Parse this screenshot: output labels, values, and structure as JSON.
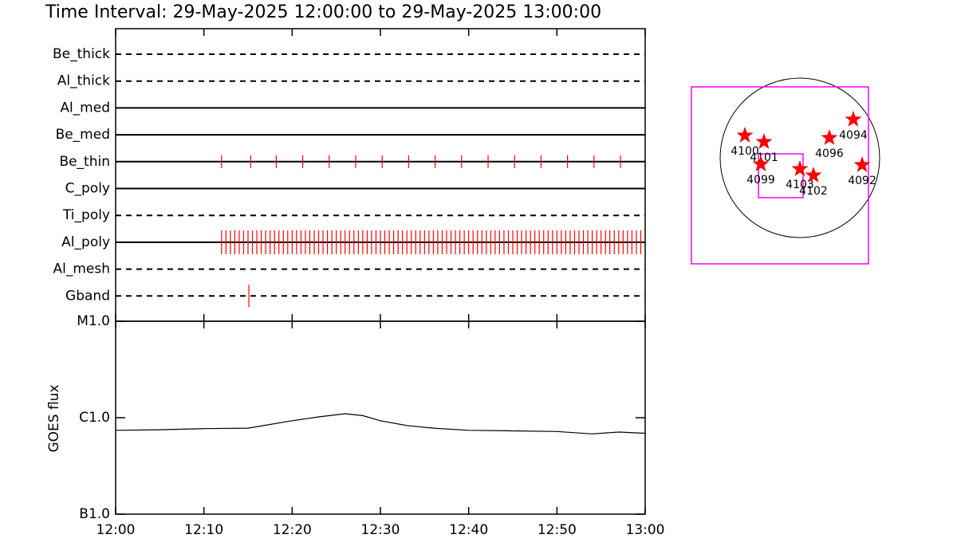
{
  "chart_data": [
    {
      "type": "timeline",
      "title": "Time Interval: 29-May-2025 12:00:00 to 29-May-2025 13:00:00",
      "color": "#ff0000",
      "filters": [
        {
          "name": "Be_thick",
          "style": "dashed",
          "events": []
        },
        {
          "name": "Al_thick",
          "style": "dashed",
          "events": []
        },
        {
          "name": "Al_med",
          "style": "solid",
          "events": []
        },
        {
          "name": "Be_med",
          "style": "solid",
          "events": []
        },
        {
          "name": "Be_thin",
          "style": "solid",
          "events": [
            12,
            15.3,
            18.2,
            21.2,
            24.2,
            27.2,
            30.2,
            33.2,
            36.2,
            39.2,
            42.2,
            45.2,
            48.2,
            51.2,
            54.2,
            57.2
          ]
        },
        {
          "name": "C_poly",
          "style": "solid",
          "events": []
        },
        {
          "name": "Ti_poly",
          "style": "dashed",
          "events": []
        },
        {
          "name": "Al_poly",
          "style": "solid",
          "events": [
            12,
            12.5,
            13,
            13.5,
            14,
            14.5,
            15,
            15.5,
            16,
            16.5,
            17,
            17.5,
            18,
            18.5,
            19,
            19.5,
            20,
            20.5,
            21,
            21.5,
            22,
            22.5,
            23,
            23.5,
            24,
            24.5,
            25,
            25.5,
            26,
            26.5,
            27,
            27.5,
            28,
            28.5,
            29,
            29.5,
            30,
            30.5,
            31,
            31.5,
            32,
            32.5,
            33,
            33.5,
            34,
            34.5,
            35,
            35.5,
            36,
            36.5,
            37,
            37.5,
            38,
            38.5,
            39,
            39.5,
            40,
            40.5,
            41,
            41.5,
            42,
            42.5,
            43,
            43.5,
            44,
            44.5,
            45,
            45.5,
            46,
            46.5,
            47,
            47.5,
            48,
            48.5,
            49,
            49.5,
            50,
            50.5,
            51,
            51.5,
            52,
            52.5,
            53,
            53.5,
            54,
            54.5,
            55,
            55.5,
            56,
            56.5,
            57,
            57.5,
            58,
            58.5,
            59,
            59.5
          ]
        },
        {
          "name": "Al_mesh",
          "style": "dashed",
          "events": []
        },
        {
          "name": "Gband",
          "style": "dashed",
          "events": [
            15.1
          ]
        }
      ]
    },
    {
      "type": "line",
      "ylabel": "GOES flux",
      "log": true,
      "color": "#000000",
      "x": [
        0,
        5,
        10,
        15,
        20,
        23,
        26,
        28,
        30,
        33,
        36,
        40,
        45,
        50,
        54,
        57,
        60
      ],
      "values": [
        7.4e-07,
        7.5e-07,
        7.7e-07,
        7.8e-07,
        9.3e-07,
        1.02e-06,
        1.1e-06,
        1.05e-06,
        9.3e-07,
        8.3e-07,
        7.8e-07,
        7.4e-07,
        7.3e-07,
        7.2e-07,
        6.8e-07,
        7.1e-07,
        6.9e-07
      ],
      "xlim": [
        0,
        60
      ],
      "xticks": [
        {
          "value": 0,
          "label": "12:00"
        },
        {
          "value": 10,
          "label": "12:10"
        },
        {
          "value": 20,
          "label": "12:20"
        },
        {
          "value": 30,
          "label": "12:30"
        },
        {
          "value": 40,
          "label": "12:40"
        },
        {
          "value": 50,
          "label": "12:50"
        },
        {
          "value": 60,
          "label": "13:00"
        }
      ],
      "ylim": [
        1e-07,
        1e-05
      ],
      "yticks": [
        {
          "value": 1e-07,
          "label": "B1.0"
        },
        {
          "value": 1e-06,
          "label": "C1.0"
        },
        {
          "value": 1e-05,
          "label": "M1.0"
        }
      ]
    },
    {
      "type": "scatter",
      "color": "#ff0000",
      "box_color": "#ff00ff",
      "xlim": [
        -1300,
        1300
      ],
      "ylim": [
        -1300,
        1300
      ],
      "points": [
        {
          "label": "4100",
          "x": -653,
          "y": 265
        },
        {
          "label": "4101",
          "x": -426,
          "y": 189
        },
        {
          "label": "4099",
          "x": -464,
          "y": -76
        },
        {
          "label": "4103",
          "x": 0,
          "y": -133
        },
        {
          "label": "4102",
          "x": 161,
          "y": -208
        },
        {
          "label": "4096",
          "x": 350,
          "y": 237
        },
        {
          "label": "4094",
          "x": 634,
          "y": 455
        },
        {
          "label": "4092",
          "x": 739,
          "y": -85
        }
      ],
      "boxes": [
        {
          "x0": -1288,
          "x1": 814,
          "y0": -1259,
          "y1": 843
        },
        {
          "x0": -492,
          "x1": 38,
          "y0": -473,
          "y1": 47
        }
      ]
    }
  ]
}
